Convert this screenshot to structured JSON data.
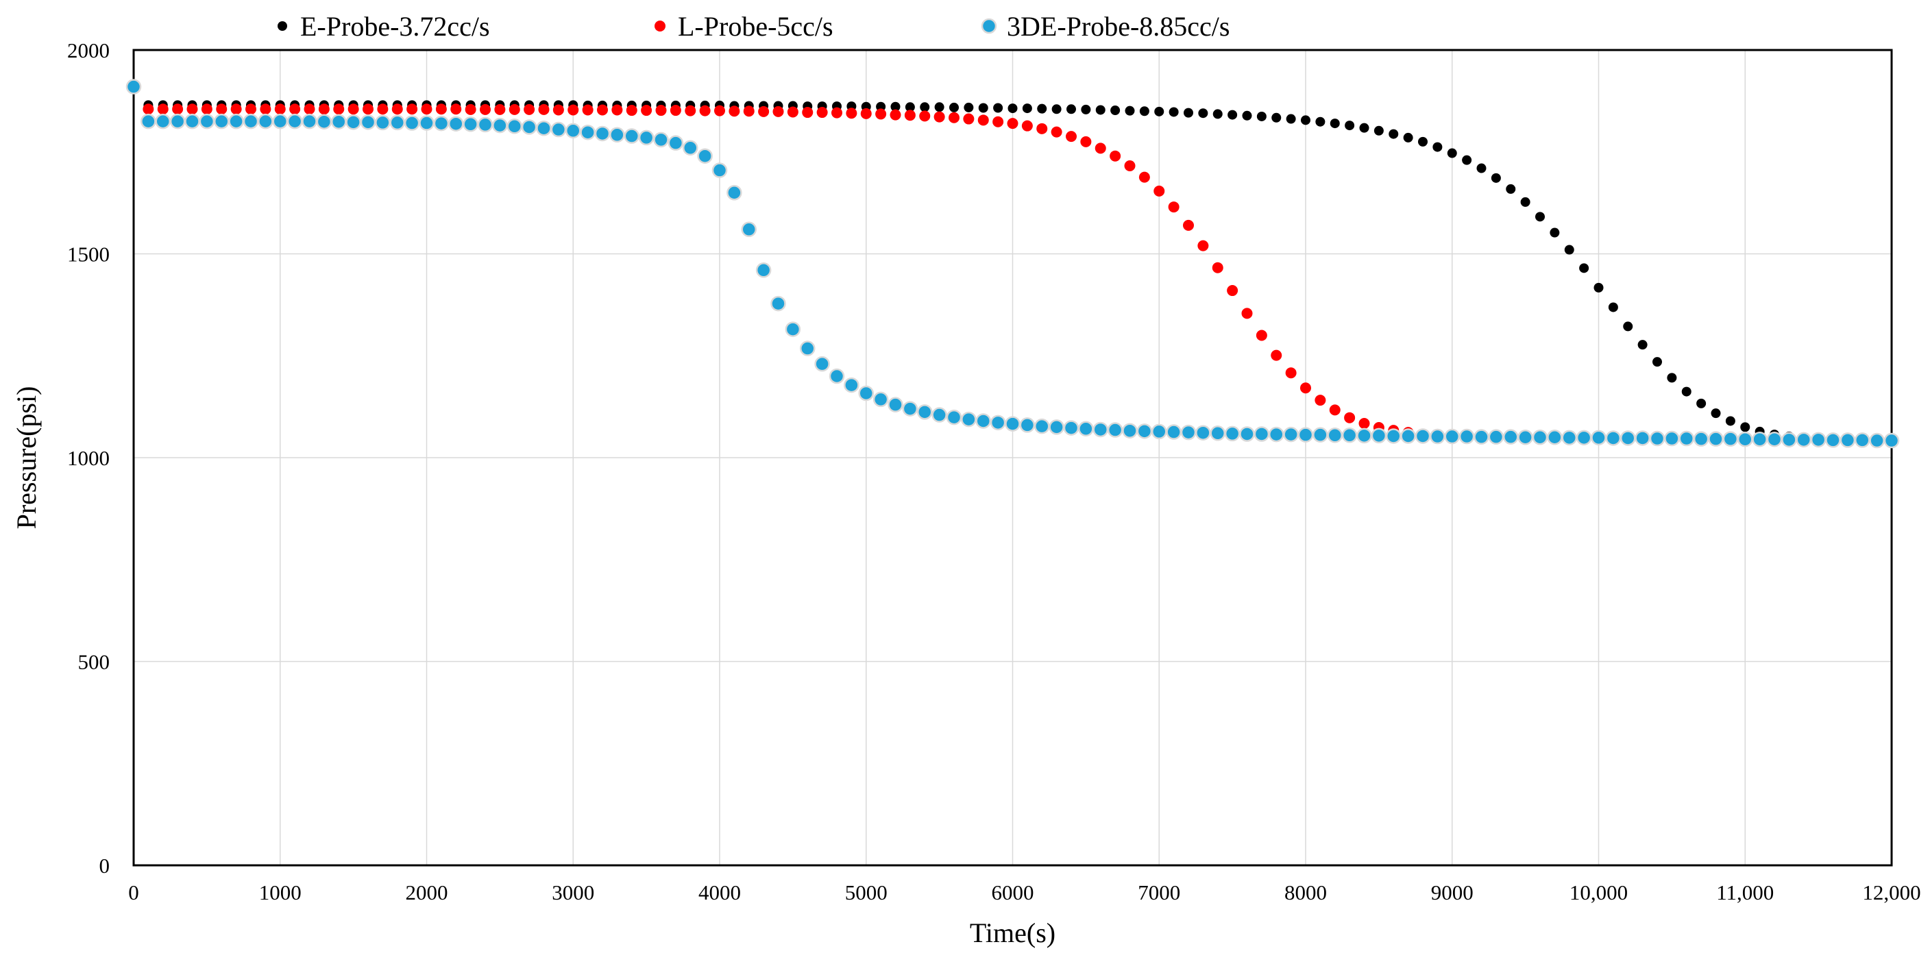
{
  "chart_data": {
    "type": "scatter",
    "xlabel": "Time(s)",
    "ylabel": "Pressure(psi)",
    "xlim": [
      0,
      12000
    ],
    "ylim": [
      0,
      2000
    ],
    "xticks": [
      0,
      1000,
      2000,
      3000,
      4000,
      5000,
      6000,
      7000,
      8000,
      9000,
      10000,
      11000,
      12000
    ],
    "xtick_labels": [
      "0",
      "1000",
      "2000",
      "3000",
      "4000",
      "5000",
      "6000",
      "7000",
      "8000",
      "9000",
      "10,000",
      "11,000",
      "12,000"
    ],
    "yticks": [
      0,
      500,
      1000,
      1500,
      2000
    ],
    "ytick_labels": [
      "0",
      "500",
      "1000",
      "1500",
      "2000"
    ],
    "grid": true,
    "legend_position": "top",
    "series": [
      {
        "name": "E-Probe-3.72cc/s",
        "color": "#000000",
        "x": [
          100,
          200,
          300,
          400,
          500,
          600,
          700,
          800,
          900,
          1000,
          1100,
          1200,
          1300,
          1400,
          1500,
          1600,
          1700,
          1800,
          1900,
          2000,
          2100,
          2200,
          2300,
          2400,
          2500,
          2600,
          2700,
          2800,
          2900,
          3000,
          3100,
          3200,
          3300,
          3400,
          3500,
          3600,
          3700,
          3800,
          3900,
          4000,
          4100,
          4200,
          4300,
          4400,
          4500,
          4600,
          4700,
          4800,
          4900,
          5000,
          5100,
          5200,
          5300,
          5400,
          5500,
          5600,
          5700,
          5800,
          5900,
          6000,
          6100,
          6200,
          6300,
          6400,
          6500,
          6600,
          6700,
          6800,
          6900,
          7000,
          7100,
          7200,
          7300,
          7400,
          7500,
          7600,
          7700,
          7800,
          7900,
          8000,
          8100,
          8200,
          8300,
          8400,
          8500,
          8600,
          8700,
          8800,
          8900,
          9000,
          9100,
          9200,
          9300,
          9400,
          9500,
          9600,
          9700,
          9800,
          9900,
          10000,
          10100,
          10200,
          10300,
          10400,
          10500,
          10600,
          10700,
          10800,
          10900,
          11000,
          11100,
          11200,
          11300,
          11400,
          11500,
          11600,
          11700,
          11800,
          11900,
          12000
        ],
        "y": [
          1865,
          1865,
          1865,
          1865,
          1865,
          1865,
          1865,
          1865,
          1865,
          1865,
          1865,
          1865,
          1865,
          1865,
          1865,
          1865,
          1865,
          1865,
          1865,
          1865,
          1865,
          1865,
          1865,
          1865,
          1865,
          1865,
          1865,
          1865,
          1865,
          1865,
          1864,
          1864,
          1864,
          1864,
          1864,
          1864,
          1864,
          1864,
          1864,
          1864,
          1863,
          1863,
          1863,
          1863,
          1863,
          1862,
          1862,
          1862,
          1862,
          1861,
          1861,
          1861,
          1860,
          1860,
          1860,
          1859,
          1859,
          1858,
          1858,
          1857,
          1857,
          1856,
          1855,
          1855,
          1854,
          1853,
          1852,
          1851,
          1850,
          1849,
          1848,
          1846,
          1845,
          1843,
          1841,
          1839,
          1837,
          1834,
          1831,
          1828,
          1824,
          1820,
          1815,
          1809,
          1802,
          1794,
          1785,
          1775,
          1762,
          1747,
          1730,
          1710,
          1686,
          1659,
          1627,
          1591,
          1552,
          1510,
          1465,
          1417,
          1369,
          1322,
          1277,
          1235,
          1196,
          1162,
          1133,
          1109,
          1090,
          1075,
          1064,
          1057,
          1052,
          1049,
          1047,
          1045,
          1044,
          1044,
          1043,
          1043
        ]
      },
      {
        "name": "L-Probe-5cc/s",
        "color": "#ff0000",
        "x": [
          100,
          200,
          300,
          400,
          500,
          600,
          700,
          800,
          900,
          1000,
          1100,
          1200,
          1300,
          1400,
          1500,
          1600,
          1700,
          1800,
          1900,
          2000,
          2100,
          2200,
          2300,
          2400,
          2500,
          2600,
          2700,
          2800,
          2900,
          3000,
          3100,
          3200,
          3300,
          3400,
          3500,
          3600,
          3700,
          3800,
          3900,
          4000,
          4100,
          4200,
          4300,
          4400,
          4500,
          4600,
          4700,
          4800,
          4900,
          5000,
          5100,
          5200,
          5300,
          5400,
          5500,
          5600,
          5700,
          5800,
          5900,
          6000,
          6100,
          6200,
          6300,
          6400,
          6500,
          6600,
          6700,
          6800,
          6900,
          7000,
          7100,
          7200,
          7300,
          7400,
          7500,
          7600,
          7700,
          7800,
          7900,
          8000,
          8100,
          8200,
          8300,
          8400,
          8500,
          8600,
          8700,
          8800,
          8900,
          9000,
          9100,
          9200,
          9300,
          9400,
          9500,
          9600,
          9700,
          9800,
          9900,
          10000,
          10100,
          10200,
          10300,
          10400,
          10500
        ],
        "y": [
          1855,
          1855,
          1855,
          1855,
          1855,
          1855,
          1855,
          1855,
          1855,
          1855,
          1855,
          1855,
          1855,
          1855,
          1855,
          1855,
          1855,
          1855,
          1855,
          1855,
          1855,
          1855,
          1854,
          1854,
          1854,
          1854,
          1854,
          1854,
          1853,
          1853,
          1853,
          1853,
          1853,
          1852,
          1852,
          1852,
          1852,
          1851,
          1851,
          1851,
          1850,
          1850,
          1849,
          1849,
          1848,
          1847,
          1847,
          1846,
          1845,
          1844,
          1843,
          1841,
          1840,
          1838,
          1836,
          1834,
          1831,
          1828,
          1824,
          1820,
          1814,
          1807,
          1799,
          1788,
          1775,
          1759,
          1740,
          1716,
          1688,
          1654,
          1615,
          1570,
          1520,
          1466,
          1410,
          1354,
          1300,
          1251,
          1208,
          1171,
          1141,
          1117,
          1098,
          1084,
          1074,
          1067,
          1062,
          1058,
          1056,
          1054,
          1053,
          1052,
          1052,
          1051,
          1051,
          1051,
          1051,
          1050,
          1050,
          1050,
          1050,
          1050,
          1050,
          1050,
          1050
        ]
      },
      {
        "name": "3DE-Probe-8.85cc/s",
        "color": "#1fa2d8",
        "x": [
          0,
          100,
          200,
          300,
          400,
          500,
          600,
          700,
          800,
          900,
          1000,
          1100,
          1200,
          1300,
          1400,
          1500,
          1600,
          1700,
          1800,
          1900,
          2000,
          2100,
          2200,
          2300,
          2400,
          2500,
          2600,
          2700,
          2800,
          2900,
          3000,
          3100,
          3200,
          3300,
          3400,
          3500,
          3600,
          3700,
          3800,
          3900,
          4000,
          4100,
          4200,
          4300,
          4400,
          4500,
          4600,
          4700,
          4800,
          4900,
          5000,
          5100,
          5200,
          5300,
          5400,
          5500,
          5600,
          5700,
          5800,
          5900,
          6000,
          6100,
          6200,
          6300,
          6400,
          6500,
          6600,
          6700,
          6800,
          6900,
          7000,
          7100,
          7200,
          7300,
          7400,
          7500,
          7600,
          7700,
          7800,
          7900,
          8000,
          8100,
          8200,
          8300,
          8400,
          8500,
          8600,
          8700,
          8800,
          8900,
          9000,
          9100,
          9200,
          9300,
          9400,
          9500,
          9600,
          9700,
          9800,
          9900,
          10000,
          10100,
          10200,
          10300,
          10400,
          10500,
          10600,
          10700,
          10800,
          10900,
          11000,
          11100,
          11200,
          11300,
          11400,
          11500,
          11600,
          11700,
          11800,
          11900,
          12000
        ],
        "y": [
          1910,
          1825,
          1825,
          1825,
          1825,
          1825,
          1825,
          1825,
          1825,
          1825,
          1825,
          1825,
          1825,
          1824,
          1824,
          1823,
          1823,
          1822,
          1822,
          1821,
          1821,
          1820,
          1819,
          1818,
          1817,
          1815,
          1813,
          1811,
          1808,
          1805,
          1802,
          1798,
          1795,
          1792,
          1789,
          1785,
          1780,
          1772,
          1760,
          1740,
          1705,
          1650,
          1560,
          1460,
          1378,
          1315,
          1268,
          1230,
          1200,
          1178,
          1158,
          1143,
          1130,
          1120,
          1112,
          1105,
          1099,
          1094,
          1090,
          1086,
          1083,
          1080,
          1077,
          1075,
          1073,
          1071,
          1069,
          1068,
          1066,
          1065,
          1064,
          1063,
          1062,
          1061,
          1060,
          1059,
          1058,
          1058,
          1057,
          1057,
          1056,
          1056,
          1055,
          1055,
          1054,
          1054,
          1053,
          1053,
          1053,
          1052,
          1052,
          1052,
          1051,
          1051,
          1051,
          1050,
          1050,
          1050,
          1049,
          1049,
          1049,
          1048,
          1048,
          1048,
          1047,
          1047,
          1047,
          1046,
          1046,
          1046,
          1045,
          1045,
          1045,
          1044,
          1044,
          1044,
          1043,
          1043,
          1043,
          1042,
          1042
        ]
      }
    ]
  }
}
